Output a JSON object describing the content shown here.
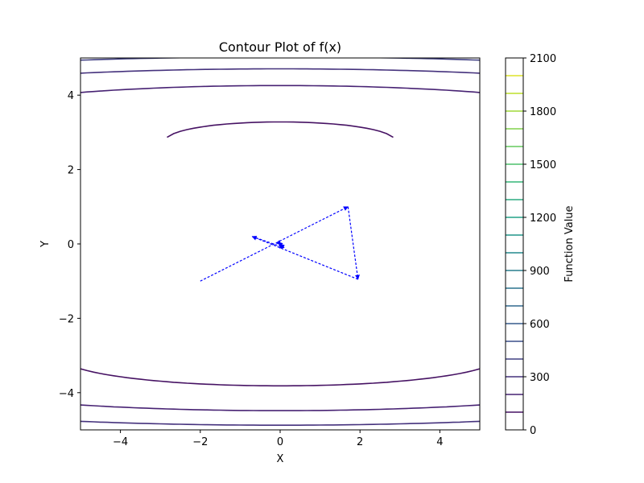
{
  "chart_data": {
    "type": "contour",
    "title": "Contour Plot of f(x)",
    "xlabel": "X",
    "ylabel": "Y",
    "xlim": [
      -5,
      5
    ],
    "ylim": [
      -5,
      5
    ],
    "x_ticks": [
      -4,
      -2,
      0,
      2,
      4
    ],
    "y_ticks": [
      -4,
      -2,
      0,
      2,
      4
    ],
    "x_tick_labels": [
      "−4",
      "−2",
      "0",
      "2",
      "4"
    ],
    "y_tick_labels": [
      "−4",
      "−2",
      "0",
      "2",
      "4"
    ],
    "grid": false,
    "function_levels": [
      0,
      100,
      200,
      300,
      400,
      500,
      600,
      700,
      800,
      900,
      1000,
      1100,
      1200,
      1300,
      1400,
      1500,
      1600,
      1700,
      1800,
      1900,
      2000,
      2100
    ],
    "colormap": "viridis",
    "colorbar": {
      "label": "Function Value",
      "ticks": [
        0,
        300,
        600,
        900,
        1200,
        1500,
        1800,
        2100
      ],
      "tick_labels": [
        "0",
        "300",
        "600",
        "900",
        "1200",
        "1500",
        "1800",
        "2100"
      ],
      "range": [
        0,
        2100
      ]
    },
    "path": {
      "color": "#0000ff",
      "style": "dashed-arrows",
      "points": [
        [
          -2.0,
          -1.0
        ],
        [
          1.7,
          1.0
        ],
        [
          1.95,
          -0.95
        ],
        [
          -0.7,
          0.2
        ],
        [
          0.1,
          -0.1
        ],
        [
          -0.05,
          0.05
        ],
        [
          0.02,
          -0.02
        ],
        [
          0.0,
          0.0
        ]
      ]
    }
  }
}
